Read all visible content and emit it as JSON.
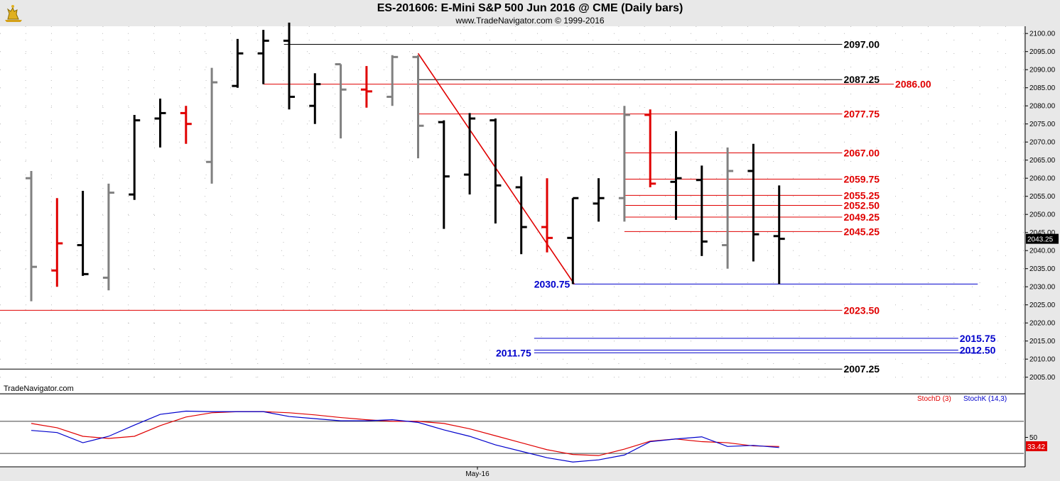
{
  "header": {
    "title": "ES-201606:  E-Mini S&P 500 Jun 2016 @ CME  (Daily bars)",
    "copyright": "www.TradeNavigator.com © 1999-2016"
  },
  "watermark": "TradeNavigator.com",
  "colors": {
    "black": "#000000",
    "gray": "#808080",
    "red": "#e00000",
    "blue": "#0000cc",
    "last_price_bg": "#000000",
    "stoch_value_bg": "#e00000"
  },
  "chart_data": [
    {
      "type": "bar",
      "subtype": "ohlc",
      "title": "ES-201606:  E-Mini S&P 500 Jun 2016 @ CME  (Daily bars)",
      "x_label": "May-16",
      "ylim": [
        2002,
        2102
      ],
      "y_ticks": [
        2005,
        2010,
        2015,
        2020,
        2025,
        2030,
        2035,
        2040,
        2045,
        2050,
        2055,
        2060,
        2065,
        2070,
        2075,
        2080,
        2085,
        2090,
        2095,
        2100
      ],
      "y_tick_labels": [
        "2005.00",
        "2010.00",
        "2015.00",
        "2020.00",
        "2025.00",
        "2030.00",
        "2035.00",
        "2040.00",
        "2045.00",
        "2050.00",
        "2055.00",
        "2060.00",
        "2065.00",
        "2070.00",
        "2075.00",
        "2080.00",
        "2085.00",
        "2090.00",
        "2095.00",
        "2100.00"
      ],
      "last_price": "2043.25",
      "last_price_value": 2043.25,
      "bars": [
        {
          "o": 2060,
          "h": 2062,
          "l": 2026,
          "c": 2035.5,
          "color": "gray"
        },
        {
          "o": 2034.5,
          "h": 2054.5,
          "l": 2030,
          "c": 2042,
          "color": "red"
        },
        {
          "o": 2041.5,
          "h": 2056.5,
          "l": 2033,
          "c": 2033.5,
          "color": "black"
        },
        {
          "o": 2032.5,
          "h": 2058.5,
          "l": 2029,
          "c": 2056,
          "color": "gray"
        },
        {
          "o": 2055.5,
          "h": 2077.5,
          "l": 2054,
          "c": 2076,
          "color": "black"
        },
        {
          "o": 2076.5,
          "h": 2082,
          "l": 2068.5,
          "c": 2078,
          "color": "black"
        },
        {
          "o": 2078,
          "h": 2080,
          "l": 2069.5,
          "c": 2075,
          "color": "red"
        },
        {
          "o": 2064.5,
          "h": 2090.5,
          "l": 2058.5,
          "c": 2086.5,
          "color": "gray"
        },
        {
          "o": 2085.5,
          "h": 2098.5,
          "l": 2085,
          "c": 2094.5,
          "color": "black"
        },
        {
          "o": 2094.5,
          "h": 2101,
          "l": 2086,
          "c": 2098,
          "color": "black"
        },
        {
          "o": 2098,
          "h": 2103,
          "l": 2079,
          "c": 2082.5,
          "color": "black"
        },
        {
          "o": 2080,
          "h": 2089,
          "l": 2075,
          "c": 2086,
          "color": "black"
        },
        {
          "o": 2091.5,
          "h": 2091.5,
          "l": 2071,
          "c": 2084.5,
          "color": "gray"
        },
        {
          "o": 2084.5,
          "h": 2091,
          "l": 2079.5,
          "c": 2084,
          "color": "red"
        },
        {
          "o": 2082.5,
          "h": 2094,
          "l": 2080,
          "c": 2093.5,
          "color": "gray"
        },
        {
          "o": 2093.5,
          "h": 2094,
          "l": 2065.5,
          "c": 2074.5,
          "color": "gray"
        },
        {
          "o": 2075.5,
          "h": 2076,
          "l": 2046,
          "c": 2060.5,
          "color": "black"
        },
        {
          "o": 2061,
          "h": 2078,
          "l": 2055.5,
          "c": 2076.5,
          "color": "black"
        },
        {
          "o": 2076,
          "h": 2076.5,
          "l": 2047.5,
          "c": 2058,
          "color": "black"
        },
        {
          "o": 2057.5,
          "h": 2060.5,
          "l": 2039,
          "c": 2046.5,
          "color": "black"
        },
        {
          "o": 2046.5,
          "h": 2060,
          "l": 2039.5,
          "c": 2043.5,
          "color": "red"
        },
        {
          "o": 2043.5,
          "h": 2054.5,
          "l": 2030.75,
          "c": 2054.5,
          "color": "black"
        },
        {
          "o": 2053,
          "h": 2060,
          "l": 2048,
          "c": 2054.5,
          "color": "black"
        },
        {
          "o": 2054.5,
          "h": 2080,
          "l": 2048,
          "c": 2077.5,
          "color": "gray"
        },
        {
          "o": 2077.5,
          "h": 2079,
          "l": 2057.5,
          "c": 2058.5,
          "color": "red"
        },
        {
          "o": 2059,
          "h": 2073,
          "l": 2048.5,
          "c": 2060,
          "color": "black"
        },
        {
          "o": 2059.5,
          "h": 2063.5,
          "l": 2038.5,
          "c": 2042.5,
          "color": "black"
        },
        {
          "o": 2041.5,
          "h": 2068.5,
          "l": 2035,
          "c": 2062,
          "color": "gray"
        },
        {
          "o": 2062,
          "h": 2069.5,
          "l": 2037,
          "c": 2044.5,
          "color": "black"
        },
        {
          "o": 2044,
          "h": 2058,
          "l": 2030.75,
          "c": 2043.25,
          "color": "black"
        }
      ],
      "levels": [
        {
          "value": 2097.0,
          "label": "2097.00",
          "color": "black",
          "x_from": 9.8,
          "label_at": 31.5
        },
        {
          "value": 2087.25,
          "label": "2087.25",
          "color": "black",
          "x_from": 15,
          "label_at": 31.5
        },
        {
          "value": 2086.0,
          "label": "2086.00",
          "color": "red",
          "x_from": 9,
          "label_at": 33.5
        },
        {
          "value": 2077.75,
          "label": "2077.75",
          "color": "red",
          "x_from": 15,
          "label_at": 31.5
        },
        {
          "value": 2067.0,
          "label": "2067.00",
          "color": "red",
          "x_from": 23,
          "label_at": 31.5
        },
        {
          "value": 2059.75,
          "label": "2059.75",
          "color": "red",
          "x_from": 23,
          "label_at": 31.5
        },
        {
          "value": 2055.25,
          "label": "2055.25",
          "color": "red",
          "x_from": 23,
          "label_at": 31.5
        },
        {
          "value": 2052.5,
          "label": "2052.50",
          "color": "red",
          "x_from": 23,
          "label_at": 31.5
        },
        {
          "value": 2049.25,
          "label": "2049.25",
          "color": "red",
          "x_from": 23,
          "label_at": 31.5
        },
        {
          "value": 2045.25,
          "label": "2045.25",
          "color": "red",
          "x_from": 23,
          "label_at": 31.5
        },
        {
          "value": 2030.75,
          "label": "2030.75",
          "color": "blue",
          "x_from": 21,
          "label_at": 35,
          "label_side": "left"
        },
        {
          "value": 2023.5,
          "label": "2023.50",
          "color": "red",
          "x_from": -1,
          "label_at": 31.5
        },
        {
          "value": 2015.75,
          "label": "2015.75",
          "color": "blue",
          "x_from": 19.5,
          "label_at": 36
        },
        {
          "value": 2012.5,
          "label": "2012.50",
          "color": "blue",
          "x_from": 19.5,
          "label_at": 36
        },
        {
          "value": 2011.75,
          "label": "2011.75",
          "color": "blue",
          "x_from": 19.5,
          "label_at": 36,
          "label_side": "left"
        },
        {
          "value": 2007.25,
          "label": "2007.25",
          "color": "black",
          "x_from": -1,
          "label_at": 31.5
        }
      ],
      "trendline": {
        "from": [
          15,
          2094.5
        ],
        "to": [
          21,
          2030.75
        ],
        "color": "red"
      }
    },
    {
      "type": "line",
      "title": "Stochastic",
      "ylim": [
        -5,
        105
      ],
      "y_ticks": [
        50
      ],
      "y_tick_labels": [
        "50"
      ],
      "ref_lines": [
        20,
        80
      ],
      "value_label": "33.42",
      "x": [
        0,
        1,
        2,
        3,
        4,
        5,
        6,
        7,
        8,
        9,
        10,
        11,
        12,
        13,
        14,
        15,
        16,
        17,
        18,
        19,
        20,
        21,
        22,
        23,
        24,
        25,
        26,
        27,
        28,
        29
      ],
      "series": [
        {
          "name": "StochD (3)",
          "color": "red",
          "values": [
            76,
            68,
            52,
            48,
            52,
            72,
            88,
            96,
            98,
            98,
            96,
            92,
            87,
            83,
            80,
            80,
            76,
            66,
            53,
            40,
            27,
            18,
            16,
            28,
            43,
            47,
            42,
            40,
            34,
            33
          ]
        },
        {
          "name": "StochK (14,3)",
          "color": "blue",
          "values": [
            63,
            59,
            40,
            52,
            73,
            93,
            99,
            98,
            98,
            98,
            89,
            85,
            81,
            81,
            83,
            78,
            64,
            52,
            36,
            24,
            12,
            4,
            8,
            17,
            42,
            47,
            51,
            33,
            35,
            31
          ]
        }
      ],
      "last_value": 33.42
    }
  ]
}
